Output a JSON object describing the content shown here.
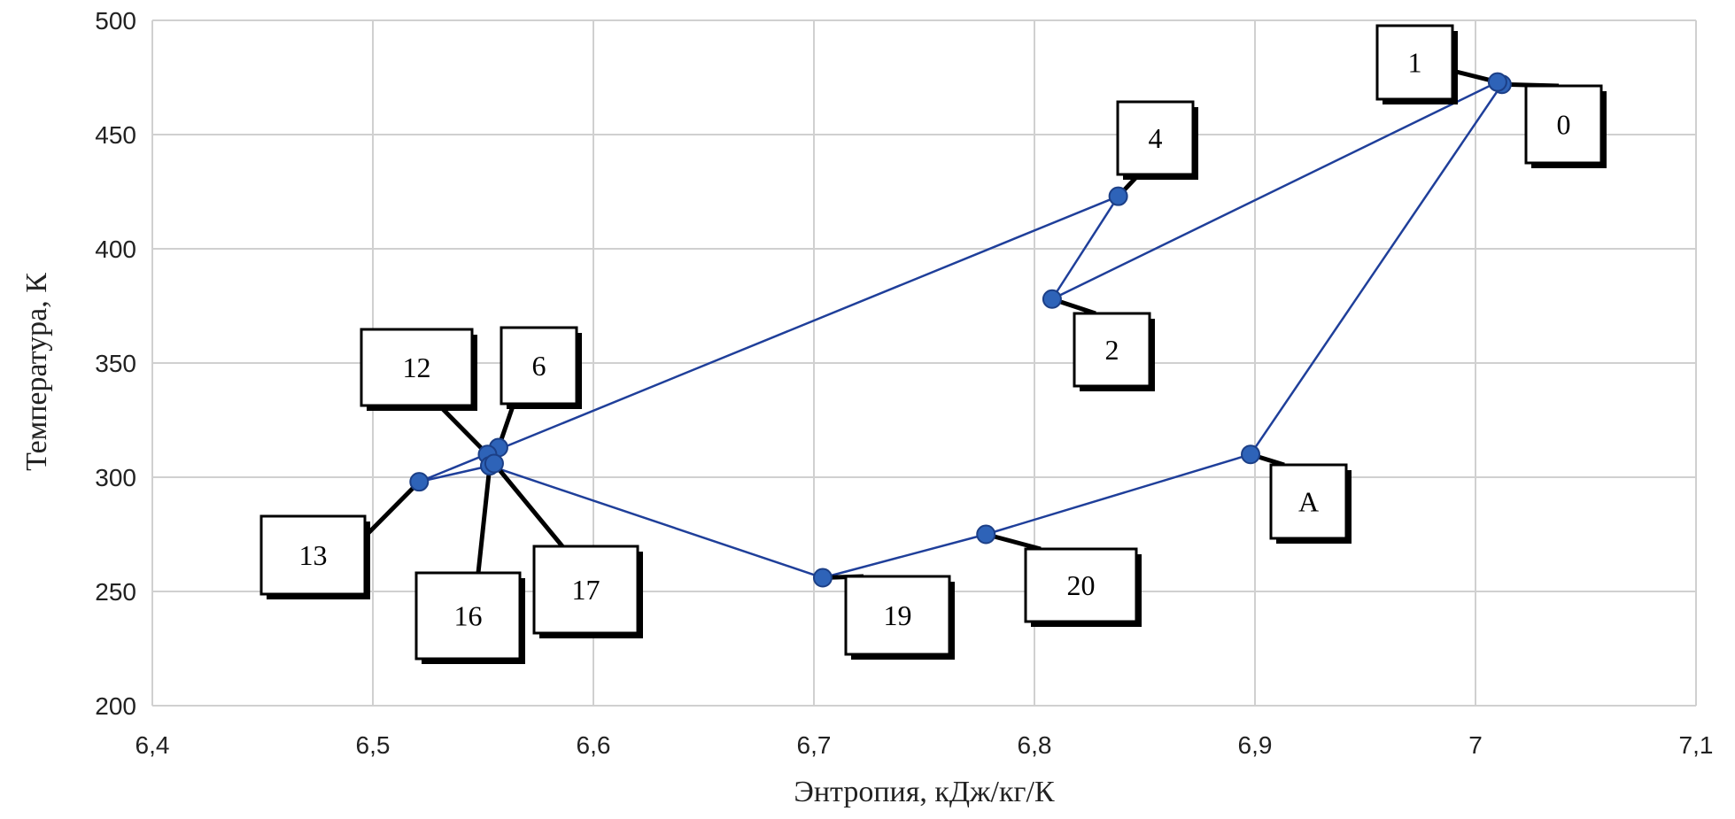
{
  "chart_data": {
    "type": "scatter",
    "title": "",
    "xlabel": "Энтропия,  кДж/кг/К",
    "ylabel": "Температура,  К",
    "xlim": [
      6.4,
      7.1
    ],
    "ylim": [
      200,
      500
    ],
    "x_ticks": [
      6.4,
      6.5,
      6.6,
      6.7,
      6.8,
      6.9,
      7.0,
      7.1
    ],
    "x_tick_labels": [
      "6,4",
      "6,5",
      "6,6",
      "6,7",
      "6,8",
      "6,9",
      "7",
      "7,1"
    ],
    "y_ticks": [
      200,
      250,
      300,
      350,
      400,
      450,
      500
    ],
    "y_tick_labels": [
      "200",
      "250",
      "300",
      "350",
      "400",
      "450",
      "500"
    ],
    "grid": true,
    "series_color": "#1f3f9a",
    "marker_color": "#2e63b8",
    "points": [
      {
        "label": "0",
        "x": 7.012,
        "y": 472
      },
      {
        "label": "1",
        "x": 7.01,
        "y": 473
      },
      {
        "label": "2",
        "x": 6.808,
        "y": 378
      },
      {
        "label": "4",
        "x": 6.838,
        "y": 423
      },
      {
        "label": "6",
        "x": 6.557,
        "y": 313
      },
      {
        "label": "12",
        "x": 6.552,
        "y": 310
      },
      {
        "label": "13",
        "x": 6.521,
        "y": 298
      },
      {
        "label": "16",
        "x": 6.553,
        "y": 305
      },
      {
        "label": "17",
        "x": 6.555,
        "y": 306
      },
      {
        "label": "19",
        "x": 6.704,
        "y": 256
      },
      {
        "label": "20",
        "x": 6.778,
        "y": 275
      },
      {
        "label": "A",
        "x": 6.898,
        "y": 310
      }
    ],
    "lines": [
      {
        "x": [
          7.01,
          6.808,
          6.838
        ],
        "y": [
          473,
          378,
          423
        ]
      },
      {
        "x": [
          6.838,
          6.521,
          6.553
        ],
        "y": [
          423,
          298,
          305
        ]
      },
      {
        "x": [
          6.553,
          6.704,
          6.778,
          6.898,
          7.012
        ],
        "y": [
          305,
          256,
          275,
          310,
          472
        ]
      }
    ]
  }
}
